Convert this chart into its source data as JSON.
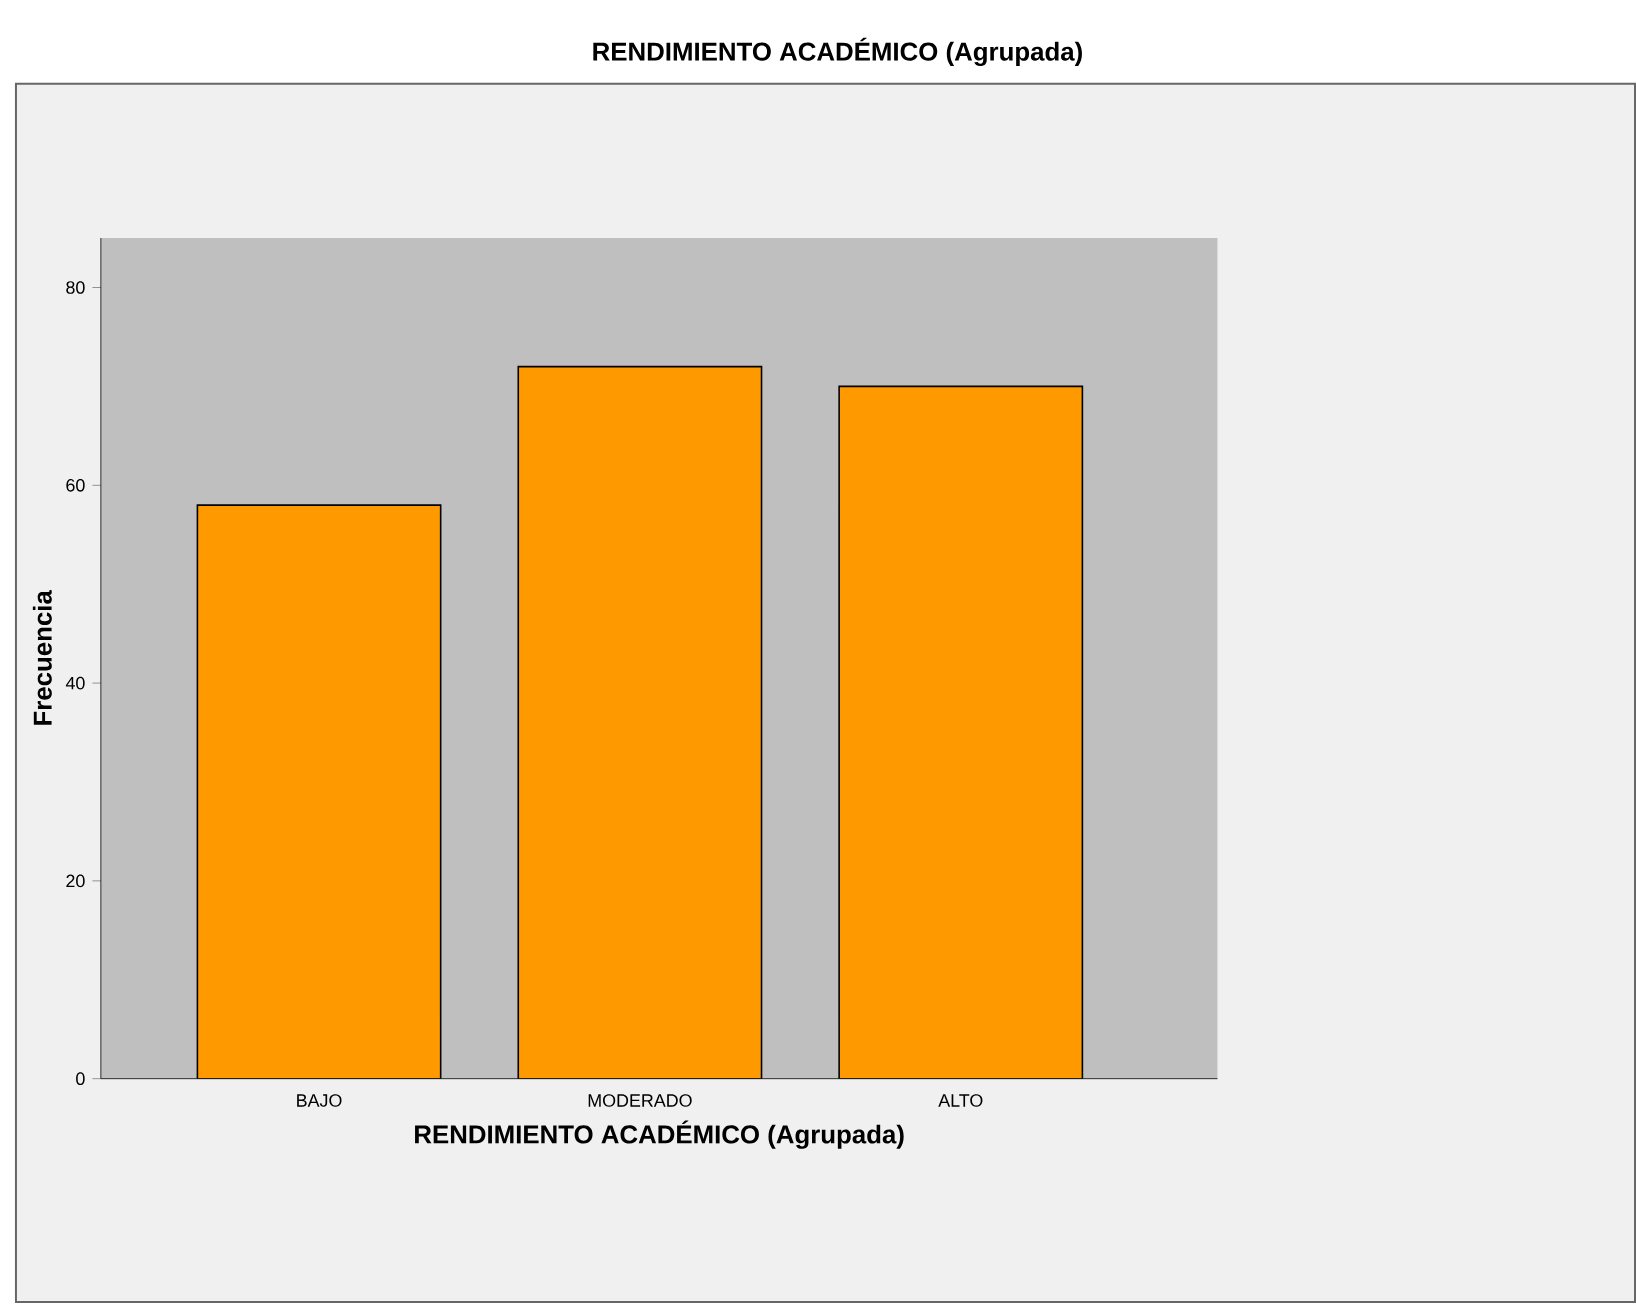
{
  "chart_data": {
    "type": "bar",
    "title": "RENDIMIENTO ACADÉMICO (Agrupada)",
    "xlabel": "RENDIMIENTO ACADÉMICO (Agrupada)",
    "ylabel": "Frecuencia",
    "categories": [
      "BAJO",
      "MODERADO",
      "ALTO"
    ],
    "values": [
      58,
      72,
      70
    ],
    "color": "#ff9900",
    "ylim": [
      0,
      85
    ],
    "yticks": [
      0,
      20,
      40,
      60,
      80
    ],
    "grid": false
  }
}
